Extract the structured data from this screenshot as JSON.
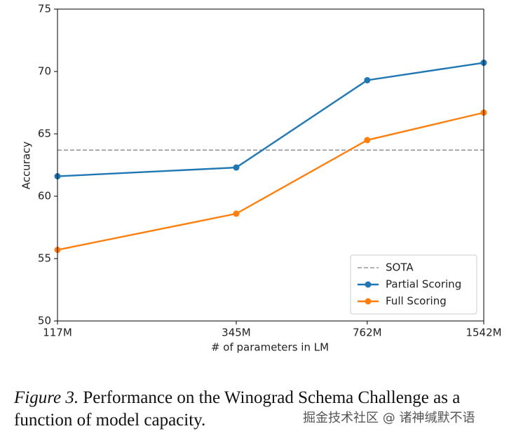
{
  "chart_data": {
    "type": "line",
    "xlabel": "# of parameters in LM",
    "ylabel": "Accuracy",
    "x": [
      117,
      345,
      762,
      1542
    ],
    "xscale": "log",
    "xlim": [
      117,
      1542
    ],
    "xticks": [
      {
        "value": 117,
        "label": "117M"
      },
      {
        "value": 345,
        "label": "345M"
      },
      {
        "value": 762,
        "label": "762M"
      },
      {
        "value": 1542,
        "label": "1542M"
      }
    ],
    "ylim": [
      50,
      75
    ],
    "yticks": [
      50,
      55,
      60,
      65,
      70,
      75
    ],
    "reference_line": {
      "name": "SOTA",
      "value": 63.7,
      "color": "#999999",
      "style": "dashed"
    },
    "series": [
      {
        "name": "Partial Scoring",
        "color": "#1f77b4",
        "values": [
          61.6,
          62.3,
          69.3,
          70.7
        ]
      },
      {
        "name": "Full Scoring",
        "color": "#ff7f0e",
        "values": [
          55.7,
          58.6,
          64.5,
          66.7
        ]
      }
    ],
    "legend": "lower right"
  },
  "caption": {
    "label": "Figure 3.",
    "text": "Performance on the Winograd Schema Challenge as a function of model capacity."
  },
  "watermark": "掘金技术社区 @ 诸神缄默不语"
}
